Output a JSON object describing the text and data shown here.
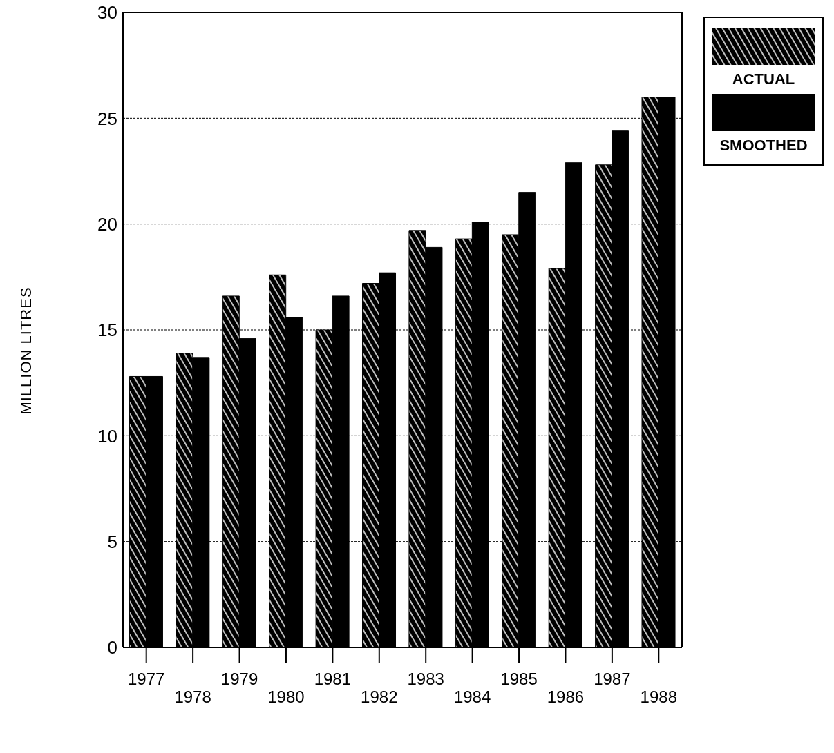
{
  "chart_data": {
    "type": "bar",
    "ylabel": "MILLION LITRES",
    "categories": [
      "1977",
      "1978",
      "1979",
      "1980",
      "1981",
      "1982",
      "1983",
      "1984",
      "1985",
      "1986",
      "1987",
      "1988"
    ],
    "series": [
      {
        "name": "ACTUAL",
        "color": "#000000",
        "values": [
          12.8,
          13.9,
          16.6,
          17.6,
          15.0,
          17.2,
          19.7,
          19.3,
          19.5,
          17.9,
          22.8,
          26.0
        ]
      },
      {
        "name": "SMOOTHED",
        "color": "#000000",
        "values": [
          12.8,
          13.7,
          14.6,
          15.6,
          16.6,
          17.7,
          18.9,
          20.1,
          21.5,
          22.9,
          24.4,
          26.0
        ]
      }
    ],
    "ylim": [
      0,
      30
    ],
    "yticks": [
      0,
      5,
      10,
      15,
      20,
      25,
      30
    ],
    "grid": "y",
    "legend": "top right"
  }
}
